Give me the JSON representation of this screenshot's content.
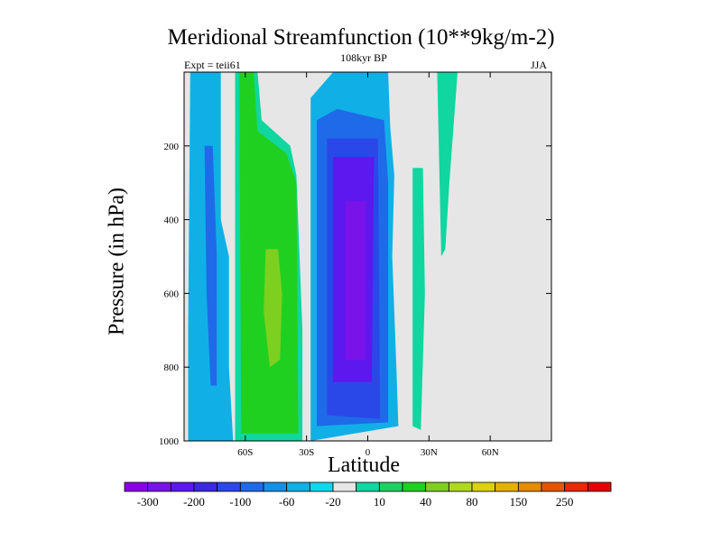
{
  "chart_data": {
    "type": "contour",
    "title": "Meridional Streamfunction (10**9kg/m-2)",
    "subtitle": "108kyr BP",
    "left_label": "Expt = teii61",
    "right_label": "JJA",
    "xlabel": "Latitude",
    "ylabel": "Pressure (in hPa)",
    "xlim": [
      -90,
      90
    ],
    "ylim": [
      1000,
      0
    ],
    "x_ticks": [
      -60,
      -30,
      0,
      30,
      60
    ],
    "x_tick_labels": [
      "60S",
      "30S",
      "0",
      "30N",
      "60N"
    ],
    "y_ticks": [
      200,
      400,
      600,
      800,
      1000
    ],
    "y_tick_labels": [
      "200",
      "400",
      "600",
      "800",
      "1000"
    ],
    "colorbar": {
      "labels": [
        "-300",
        "-200",
        "-100",
        "-60",
        "-20",
        "10",
        "40",
        "80",
        "150",
        "250"
      ],
      "colors": [
        "#8c00e6",
        "#7a12ea",
        "#5c18ee",
        "#3c28e0",
        "#2a48e8",
        "#1f6ae8",
        "#1590e6",
        "#10b0e6",
        "#0ed8f0",
        "#e6e6e6",
        "#10d6a0",
        "#20d060",
        "#20d020",
        "#7ed020",
        "#b0d820",
        "#dcd010",
        "#e6b000",
        "#e68a00",
        "#e65400",
        "#e62a00",
        "#e60000"
      ]
    },
    "regions": [
      {
        "name": "blue cell 75S",
        "level": "-20",
        "color": "#10b0e6",
        "path": [
          [
            -87,
            0
          ],
          [
            -72,
            0
          ],
          [
            -72,
            400
          ],
          [
            -68,
            500
          ],
          [
            -68,
            800
          ],
          [
            -66,
            1000
          ],
          [
            -88,
            1000
          ],
          [
            -88,
            700
          ]
        ]
      },
      {
        "name": "blue cell 75S core",
        "level": "-60",
        "color": "#1f6ae8",
        "path": [
          [
            -80,
            200
          ],
          [
            -76,
            200
          ],
          [
            -74,
            500
          ],
          [
            -74,
            850
          ],
          [
            -77,
            850
          ],
          [
            -79,
            600
          ]
        ]
      },
      {
        "name": "green cell 45S",
        "level": "10",
        "color": "#10d6a0",
        "path": [
          [
            -65,
            0
          ],
          [
            -54,
            0
          ],
          [
            -52,
            130
          ],
          [
            -38,
            200
          ],
          [
            -35,
            280
          ],
          [
            -32,
            700
          ],
          [
            -32,
            1000
          ],
          [
            -65,
            1000
          ]
        ]
      },
      {
        "name": "green cell 45S core",
        "level": "40",
        "color": "#20d020",
        "path": [
          [
            -63,
            0
          ],
          [
            -56,
            0
          ],
          [
            -54,
            160
          ],
          [
            -40,
            220
          ],
          [
            -35,
            300
          ],
          [
            -34,
            980
          ],
          [
            -62,
            980
          ]
        ]
      },
      {
        "name": "green cell 45S max",
        "level": "80",
        "color": "#7ed020",
        "path": [
          [
            -50,
            480
          ],
          [
            -44,
            480
          ],
          [
            -42,
            600
          ],
          [
            -43,
            780
          ],
          [
            -48,
            800
          ],
          [
            -51,
            650
          ]
        ]
      },
      {
        "name": "tropical cell",
        "level": "-20",
        "color": "#10b0e6",
        "path": [
          [
            -28,
            70
          ],
          [
            -17,
            0
          ],
          [
            10,
            0
          ],
          [
            11,
            150
          ],
          [
            13,
            280
          ],
          [
            12,
            500
          ],
          [
            14,
            800
          ],
          [
            15,
            960
          ],
          [
            -28,
            1000
          ]
        ]
      },
      {
        "name": "tropical cell -60",
        "level": "-60",
        "color": "#1f6ae8",
        "path": [
          [
            -25,
            130
          ],
          [
            -15,
            100
          ],
          [
            8,
            130
          ],
          [
            10,
            300
          ],
          [
            10,
            950
          ],
          [
            -25,
            960
          ]
        ]
      },
      {
        "name": "tropical cell -100",
        "level": "-100",
        "color": "#2a48e8",
        "path": [
          [
            -20,
            180
          ],
          [
            5,
            180
          ],
          [
            6,
            940
          ],
          [
            -20,
            930
          ]
        ]
      },
      {
        "name": "tropical cell -200",
        "level": "-200",
        "color": "#5c18ee",
        "path": [
          [
            -17,
            230
          ],
          [
            3,
            230
          ],
          [
            2,
            840
          ],
          [
            -17,
            840
          ]
        ]
      },
      {
        "name": "tropical cell core",
        "level": "-300",
        "color": "#7a12ea",
        "path": [
          [
            -11,
            350
          ],
          [
            -1,
            350
          ],
          [
            -1,
            780
          ],
          [
            -11,
            780
          ]
        ]
      },
      {
        "name": "green column 20N",
        "level": "10",
        "color": "#10d6a0",
        "path": [
          [
            22,
            260
          ],
          [
            27,
            260
          ],
          [
            28,
            600
          ],
          [
            26,
            970
          ],
          [
            22,
            960
          ],
          [
            22,
            600
          ]
        ]
      },
      {
        "name": "green column 35N",
        "level": "10",
        "color": "#10d6a0",
        "path": [
          [
            34,
            0
          ],
          [
            44,
            0
          ],
          [
            40,
            300
          ],
          [
            38,
            480
          ],
          [
            36,
            500
          ]
        ]
      }
    ]
  }
}
